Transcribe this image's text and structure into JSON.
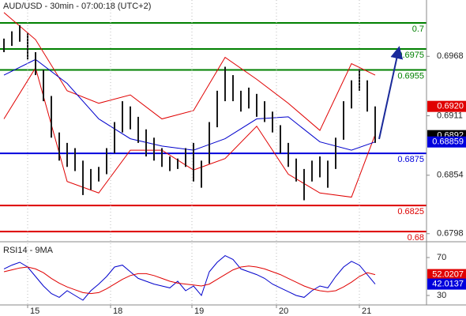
{
  "chart_data": [
    {
      "type": "ohlc",
      "title": "AUD/USD - 30min - 07:00:18 (UTC+2)",
      "xlim": [
        -0.5,
        53.5
      ],
      "ylim": [
        0.6791,
        0.7022
      ],
      "yticks": [
        0.6968,
        0.6911,
        0.6854,
        0.6798
      ],
      "bar_color": "#1a1a1a",
      "high": [
        0.6985,
        0.6992,
        0.6998,
        0.699,
        0.6972,
        0.6955,
        0.693,
        0.6895,
        0.6885,
        0.688,
        0.6868,
        0.686,
        0.6862,
        0.688,
        0.6905,
        0.6925,
        0.692,
        0.691,
        0.6898,
        0.689,
        0.688,
        0.6872,
        0.687,
        0.688,
        0.6885,
        0.6868,
        0.6905,
        0.6935,
        0.6958,
        0.695,
        0.6935,
        0.6938,
        0.6932,
        0.6925,
        0.6915,
        0.6902,
        0.6885,
        0.687,
        0.686,
        0.6868,
        0.6872,
        0.6868,
        0.689,
        0.6925,
        0.6945,
        0.6956,
        0.6945,
        0.692
      ],
      "low": [
        0.6972,
        0.6978,
        0.6982,
        0.6965,
        0.695,
        0.6925,
        0.689,
        0.6868,
        0.6862,
        0.6858,
        0.6835,
        0.684,
        0.6848,
        0.6855,
        0.6875,
        0.6895,
        0.6898,
        0.6885,
        0.6872,
        0.6868,
        0.6862,
        0.6858,
        0.686,
        0.6862,
        0.6848,
        0.6842,
        0.6865,
        0.69,
        0.6925,
        0.6925,
        0.6915,
        0.6918,
        0.691,
        0.6905,
        0.6895,
        0.6875,
        0.6862,
        0.6848,
        0.683,
        0.6848,
        0.6852,
        0.6842,
        0.686,
        0.6888,
        0.6918,
        0.6935,
        0.6915,
        0.6885
      ],
      "overlays": [
        {
          "color": "#e00000",
          "x": [
            0,
            4,
            8,
            12,
            16,
            20,
            24,
            28,
            32,
            36,
            40,
            44,
            47
          ],
          "values": [
            0.701,
            0.6984,
            0.6935,
            0.6923,
            0.6931,
            0.6908,
            0.6916,
            0.6967,
            0.6946,
            0.6923,
            0.6897,
            0.6961,
            0.695
          ]
        },
        {
          "color": "#e00000",
          "x": [
            0,
            4,
            8,
            12,
            16,
            20,
            24,
            28,
            32,
            36,
            40,
            44,
            47
          ],
          "values": [
            0.6908,
            0.6957,
            0.6848,
            0.6837,
            0.6878,
            0.6878,
            0.6859,
            0.687,
            0.6901,
            0.6855,
            0.6837,
            0.6833,
            0.6893
          ]
        },
        {
          "color": "#0000cc",
          "x": [
            0,
            4,
            8,
            12,
            16,
            20,
            24,
            28,
            32,
            36,
            40,
            44,
            47
          ],
          "values": [
            0.695,
            0.6965,
            0.6942,
            0.6908,
            0.6889,
            0.6882,
            0.6878,
            0.6889,
            0.6908,
            0.691,
            0.6886,
            0.6878,
            0.6886
          ]
        }
      ],
      "levels": [
        {
          "value": 0.7,
          "color": "#008000"
        },
        {
          "value": 0.6975,
          "color": "#008000"
        },
        {
          "value": 0.6955,
          "color": "#008000"
        },
        {
          "value": 0.6875,
          "color": "#0000dd"
        },
        {
          "value": 0.6825,
          "color": "#dd0000"
        },
        {
          "value": 0.68,
          "color": "#dd0000"
        }
      ],
      "markers": [
        {
          "value": 0.692,
          "label": "0.6920",
          "color": "#e00000"
        },
        {
          "value": 0.6892,
          "color": "#000000"
        },
        {
          "value": 0.68859,
          "color": "#0000dd"
        }
      ]
    },
    {
      "type": "line",
      "title": "RSI14 - 9MA",
      "xlim": [
        -0.5,
        53.5
      ],
      "ylim": [
        20,
        85
      ],
      "yticks": [
        70,
        30
      ],
      "xticks": [
        {
          "value": 3,
          "label": "15"
        },
        {
          "value": 13.5,
          "label": "18"
        },
        {
          "value": 23.8,
          "label": "19"
        },
        {
          "value": 34.5,
          "label": "20"
        },
        {
          "value": 45,
          "label": "21"
        }
      ],
      "series": [
        {
          "color": "#0000cc",
          "values": [
            58,
            62,
            65,
            60,
            50,
            40,
            32,
            28,
            35,
            30,
            25,
            35,
            42,
            50,
            60,
            62,
            55,
            48,
            45,
            42,
            40,
            38,
            45,
            35,
            40,
            30,
            55,
            65,
            72,
            68,
            58,
            55,
            52,
            48,
            42,
            38,
            34,
            30,
            28,
            35,
            40,
            38,
            50,
            60,
            66,
            62,
            52,
            42
          ]
        },
        {
          "color": "#e00000",
          "values": [
            55,
            57,
            59,
            60,
            58,
            54,
            48,
            43,
            39,
            36,
            33,
            32,
            33,
            37,
            42,
            47,
            51,
            53,
            53,
            51,
            48,
            45,
            43,
            42,
            41,
            40,
            42,
            47,
            52,
            57,
            60,
            61,
            60,
            58,
            55,
            52,
            48,
            44,
            40,
            37,
            35,
            34,
            35,
            39,
            44,
            50,
            54,
            52
          ]
        }
      ],
      "markers": [
        {
          "value": 52.0207,
          "color": "#e00000"
        },
        {
          "value": 42.0137,
          "color": "#0000dd"
        }
      ]
    }
  ]
}
